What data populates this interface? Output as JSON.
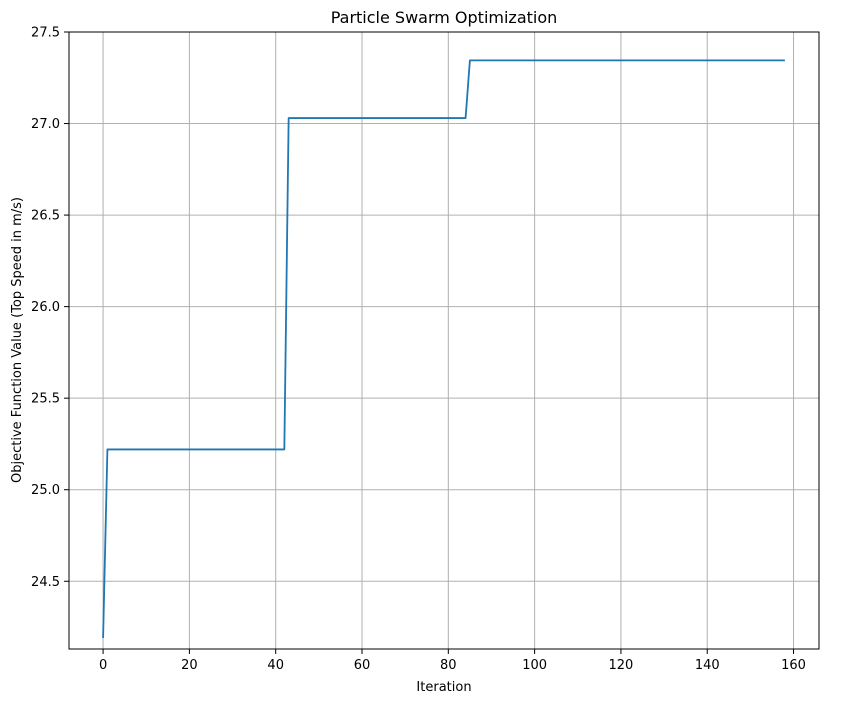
{
  "chart_data": {
    "type": "line",
    "title": "Particle Swarm Optimization",
    "xlabel": "Iteration",
    "ylabel": "Objective Function Value (Top Speed in m/s)",
    "xlim": [
      -7.9,
      165.9
    ],
    "ylim": [
      24.13,
      27.5
    ],
    "xticks": [
      0,
      20,
      40,
      60,
      80,
      100,
      120,
      140,
      160
    ],
    "yticks": [
      24.5,
      25.0,
      25.5,
      26.0,
      26.5,
      27.0,
      27.5
    ],
    "xtick_labels": [
      "0",
      "20",
      "40",
      "60",
      "80",
      "100",
      "120",
      "140",
      "160"
    ],
    "ytick_labels": [
      "24.5",
      "25.0",
      "25.5",
      "26.0",
      "26.5",
      "27.0",
      "27.5"
    ],
    "grid": true,
    "series": [
      {
        "color": "#1f77b4",
        "x": [
          0,
          1,
          42,
          43,
          84,
          85,
          158
        ],
        "y": [
          24.19,
          25.22,
          25.22,
          27.03,
          27.03,
          27.345,
          27.345
        ]
      }
    ]
  }
}
